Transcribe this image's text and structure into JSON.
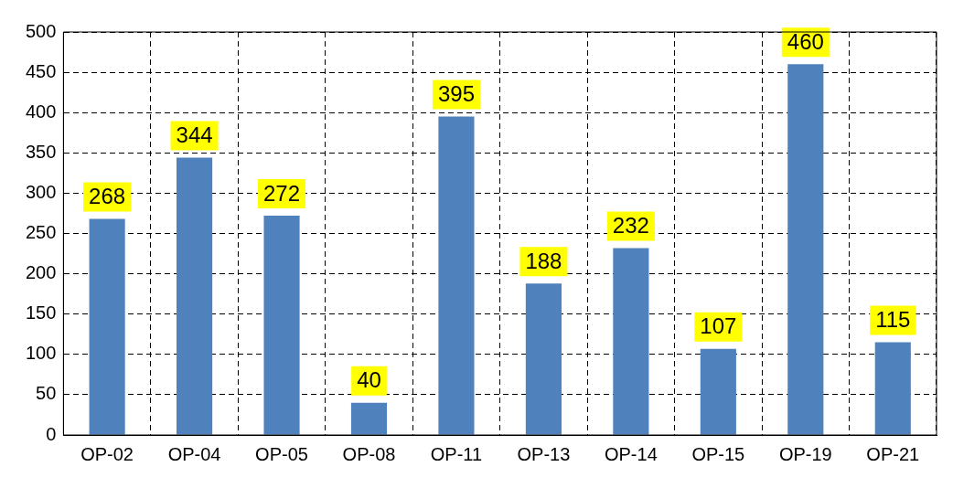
{
  "chart_data": {
    "type": "bar",
    "categories": [
      "OP-02",
      "OP-04",
      "OP-05",
      "OP-08",
      "OP-11",
      "OP-13",
      "OP-14",
      "OP-15",
      "OP-19",
      "OP-21"
    ],
    "values": [
      268,
      344,
      272,
      40,
      395,
      188,
      232,
      107,
      460,
      115
    ],
    "color": "#4f81bd",
    "ylim": [
      0,
      500
    ],
    "yticks": [
      0,
      50,
      100,
      150,
      200,
      250,
      300,
      350,
      400,
      450,
      500
    ],
    "grid": true,
    "data_labels": true,
    "legend": false
  }
}
